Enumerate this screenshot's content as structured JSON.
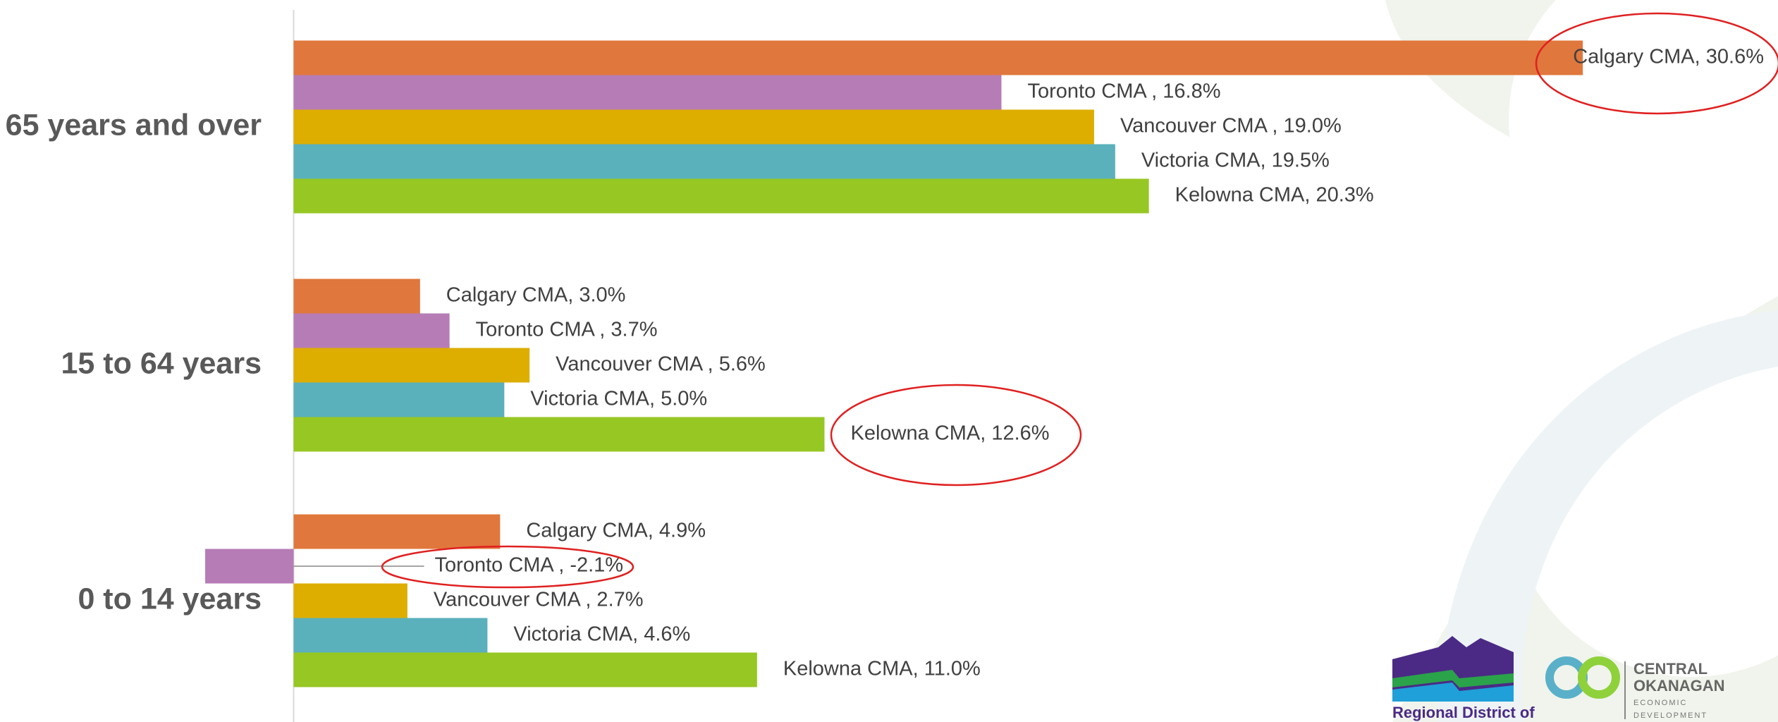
{
  "chart_data": {
    "type": "hbar",
    "categories": [
      "65 years and over",
      "15 to 64 years",
      "0 to 14 years"
    ],
    "series": [
      {
        "color": "#e0773c",
        "values": [
          30.6,
          3.0,
          4.9
        ],
        "value_labels": [
          "Calgary CMA, 30.6%",
          "Calgary CMA, 3.0%",
          "Calgary CMA, 4.9%"
        ]
      },
      {
        "color": "#b67cb6",
        "values": [
          16.8,
          3.7,
          -2.1
        ],
        "value_labels": [
          "Toronto CMA , 16.8%",
          "Toronto CMA , 3.7%",
          "Toronto CMA , -2.1%"
        ]
      },
      {
        "color": "#ddae00",
        "values": [
          19.0,
          5.6,
          2.7
        ],
        "value_labels": [
          "Vancouver CMA , 19.0%",
          "Vancouver CMA , 5.6%",
          "Vancouver CMA , 2.7%"
        ]
      },
      {
        "color": "#5ab0bb",
        "values": [
          19.5,
          5.0,
          4.6
        ],
        "value_labels": [
          "Victoria CMA, 19.5%",
          "Victoria CMA, 5.0%",
          "Victoria CMA, 4.6%"
        ]
      },
      {
        "color": "#97c723",
        "values": [
          20.3,
          12.6,
          11.0
        ],
        "value_labels": [
          "Kelowna CMA, 20.3%",
          "Kelowna CMA, 12.6%",
          "Kelowna CMA, 11.0%"
        ]
      }
    ],
    "xlim": [
      -4,
      32
    ]
  },
  "logos": {
    "regional": "Regional District of",
    "central": [
      "CENTRAL",
      "OKANAGAN"
    ],
    "central_sub": [
      "ECONOMIC",
      "DEVELOPMENT"
    ]
  }
}
